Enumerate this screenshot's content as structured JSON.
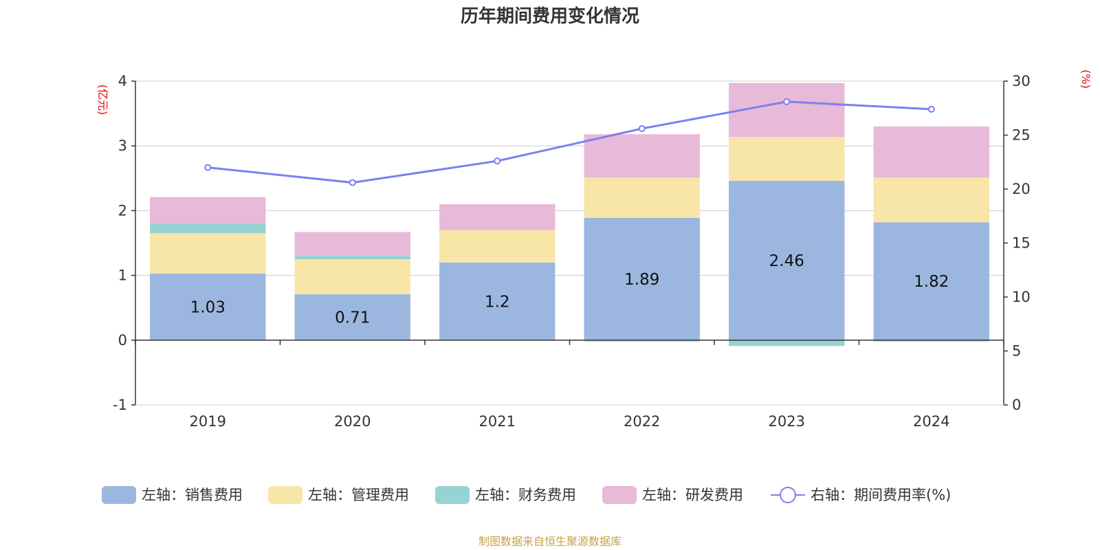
{
  "chart_data": {
    "type": "bar",
    "stacked": true,
    "title": "历年期间费用变化情况",
    "categories": [
      "2019",
      "2020",
      "2021",
      "2022",
      "2023",
      "2024"
    ],
    "y_left": {
      "unit": "(亿元)",
      "range": [
        -1,
        4
      ],
      "ticks": [
        -1,
        0,
        1,
        2,
        3,
        4
      ]
    },
    "y_right": {
      "unit": "(%)",
      "range": [
        0,
        30
      ],
      "ticks": [
        0,
        5,
        10,
        15,
        20,
        25,
        30
      ]
    },
    "grid": true,
    "legend_position": "bottom",
    "series": [
      {
        "name": "左轴：销售费用",
        "type": "bar",
        "axis": "left",
        "color": "#9bb7e0",
        "values": [
          1.03,
          0.71,
          1.2,
          1.89,
          2.46,
          1.82
        ],
        "data_labels": [
          "1.03",
          "0.71",
          "1.2",
          "1.89",
          "2.46",
          "1.82"
        ]
      },
      {
        "name": "左轴：管理费用",
        "type": "bar",
        "axis": "left",
        "color": "#f8e6a8",
        "values": [
          0.62,
          0.54,
          0.5,
          0.62,
          0.68,
          0.69
        ]
      },
      {
        "name": "左轴：财务费用",
        "type": "bar",
        "axis": "left",
        "color": "#96d3d3",
        "values": [
          0.16,
          0.05,
          0.0,
          -0.02,
          -0.09,
          -0.02
        ]
      },
      {
        "name": "左轴：研发费用",
        "type": "bar",
        "axis": "left",
        "color": "#e8b9d8",
        "values": [
          0.4,
          0.37,
          0.4,
          0.67,
          0.83,
          0.79
        ]
      },
      {
        "name": "右轴：期间费用率(%)",
        "type": "line",
        "axis": "right",
        "color": "#7b7ff0",
        "values": [
          22.0,
          20.6,
          22.6,
          25.6,
          28.1,
          27.4
        ]
      }
    ],
    "source": "制图数据来自恒生聚源数据库"
  }
}
